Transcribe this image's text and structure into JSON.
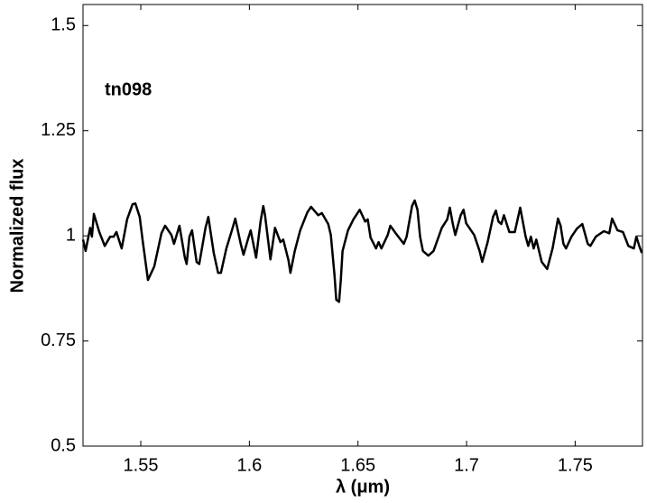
{
  "chart_data": {
    "type": "line",
    "annotation": "tn098",
    "xlabel": "λ (μm)",
    "ylabel": "Normalized flux",
    "color": "#000000",
    "xlim": [
      1.5234,
      1.781
    ],
    "ylim": [
      0.5,
      1.55
    ],
    "xticks": [
      1.55,
      1.6,
      1.65,
      1.7,
      1.75
    ],
    "yticks": [
      0.5,
      0.75,
      1,
      1.25,
      1.5
    ],
    "grid": false,
    "x": [
      1.5234,
      1.5246,
      1.5259,
      1.5267,
      1.5275,
      1.5284,
      1.5309,
      1.5334,
      1.5359,
      1.5375,
      1.5388,
      1.5412,
      1.5437,
      1.5462,
      1.5475,
      1.5495,
      1.5508,
      1.5533,
      1.5562,
      1.5595,
      1.5612,
      1.5641,
      1.5653,
      1.5678,
      1.5703,
      1.5711,
      1.5724,
      1.5736,
      1.5757,
      1.5769,
      1.5798,
      1.5811,
      1.5836,
      1.5856,
      1.5869,
      1.5894,
      1.5923,
      1.5935,
      1.596,
      1.5973,
      1.5993,
      1.6006,
      1.6031,
      1.6052,
      1.6064,
      1.6072,
      1.6097,
      1.6118,
      1.6143,
      1.6156,
      1.618,
      1.6189,
      1.6209,
      1.6234,
      1.6267,
      1.6284,
      1.6317,
      1.6334,
      1.6363,
      1.6375,
      1.6392,
      1.64,
      1.6413,
      1.6421,
      1.6429,
      1.6454,
      1.6479,
      1.6508,
      1.6533,
      1.6545,
      1.6558,
      1.6583,
      1.6595,
      1.6608,
      1.6637,
      1.6649,
      1.6674,
      1.6711,
      1.6724,
      1.6749,
      1.6761,
      1.6774,
      1.6786,
      1.6799,
      1.6824,
      1.6848,
      1.6886,
      1.6911,
      1.6923,
      1.6936,
      1.6948,
      1.6973,
      1.6986,
      1.6998,
      1.7035,
      1.706,
      1.7072,
      1.7097,
      1.7122,
      1.7135,
      1.7147,
      1.716,
      1.7172,
      1.7197,
      1.7222,
      1.7247,
      1.7272,
      1.7284,
      1.7296,
      1.7309,
      1.7321,
      1.7346,
      1.7371,
      1.7396,
      1.7421,
      1.7433,
      1.7446,
      1.7458,
      1.7483,
      1.7508,
      1.7533,
      1.7558,
      1.757,
      1.7595,
      1.7632,
      1.7657,
      1.767,
      1.7695,
      1.772,
      1.7745,
      1.777,
      1.7782,
      1.7795,
      1.7807
    ],
    "values": [
      0.991,
      0.964,
      0.998,
      1.019,
      0.998,
      1.052,
      1.009,
      0.976,
      0.998,
      0.998,
      1.009,
      0.97,
      1.039,
      1.075,
      1.077,
      1.045,
      0.991,
      0.895,
      0.927,
      1.006,
      1.024,
      1.002,
      0.981,
      1.024,
      0.948,
      0.933,
      0.998,
      1.013,
      0.938,
      0.933,
      1.019,
      1.045,
      0.959,
      0.912,
      0.912,
      0.97,
      1.019,
      1.041,
      0.981,
      0.955,
      0.991,
      1.013,
      0.948,
      1.036,
      1.071,
      1.049,
      0.944,
      1.019,
      0.985,
      0.991,
      0.942,
      0.912,
      0.964,
      1.013,
      1.056,
      1.069,
      1.049,
      1.054,
      1.028,
      1.002,
      0.906,
      0.848,
      0.843,
      0.895,
      0.964,
      1.013,
      1.039,
      1.062,
      1.034,
      1.039,
      0.996,
      0.97,
      0.985,
      0.97,
      1.002,
      1.024,
      1.006,
      0.981,
      0.998,
      1.071,
      1.084,
      1.062,
      0.998,
      0.964,
      0.953,
      0.964,
      1.019,
      1.039,
      1.067,
      1.03,
      1.002,
      1.049,
      1.062,
      1.03,
      1.002,
      0.964,
      0.938,
      0.985,
      1.045,
      1.06,
      1.034,
      1.028,
      1.049,
      1.009,
      1.009,
      1.067,
      0.998,
      0.976,
      0.998,
      0.97,
      0.991,
      0.938,
      0.921,
      0.97,
      1.041,
      1.024,
      0.981,
      0.97,
      0.998,
      1.017,
      1.028,
      0.981,
      0.976,
      0.998,
      1.011,
      1.006,
      1.041,
      1.013,
      1.009,
      0.976,
      0.97,
      0.998,
      0.976,
      0.959
    ]
  }
}
